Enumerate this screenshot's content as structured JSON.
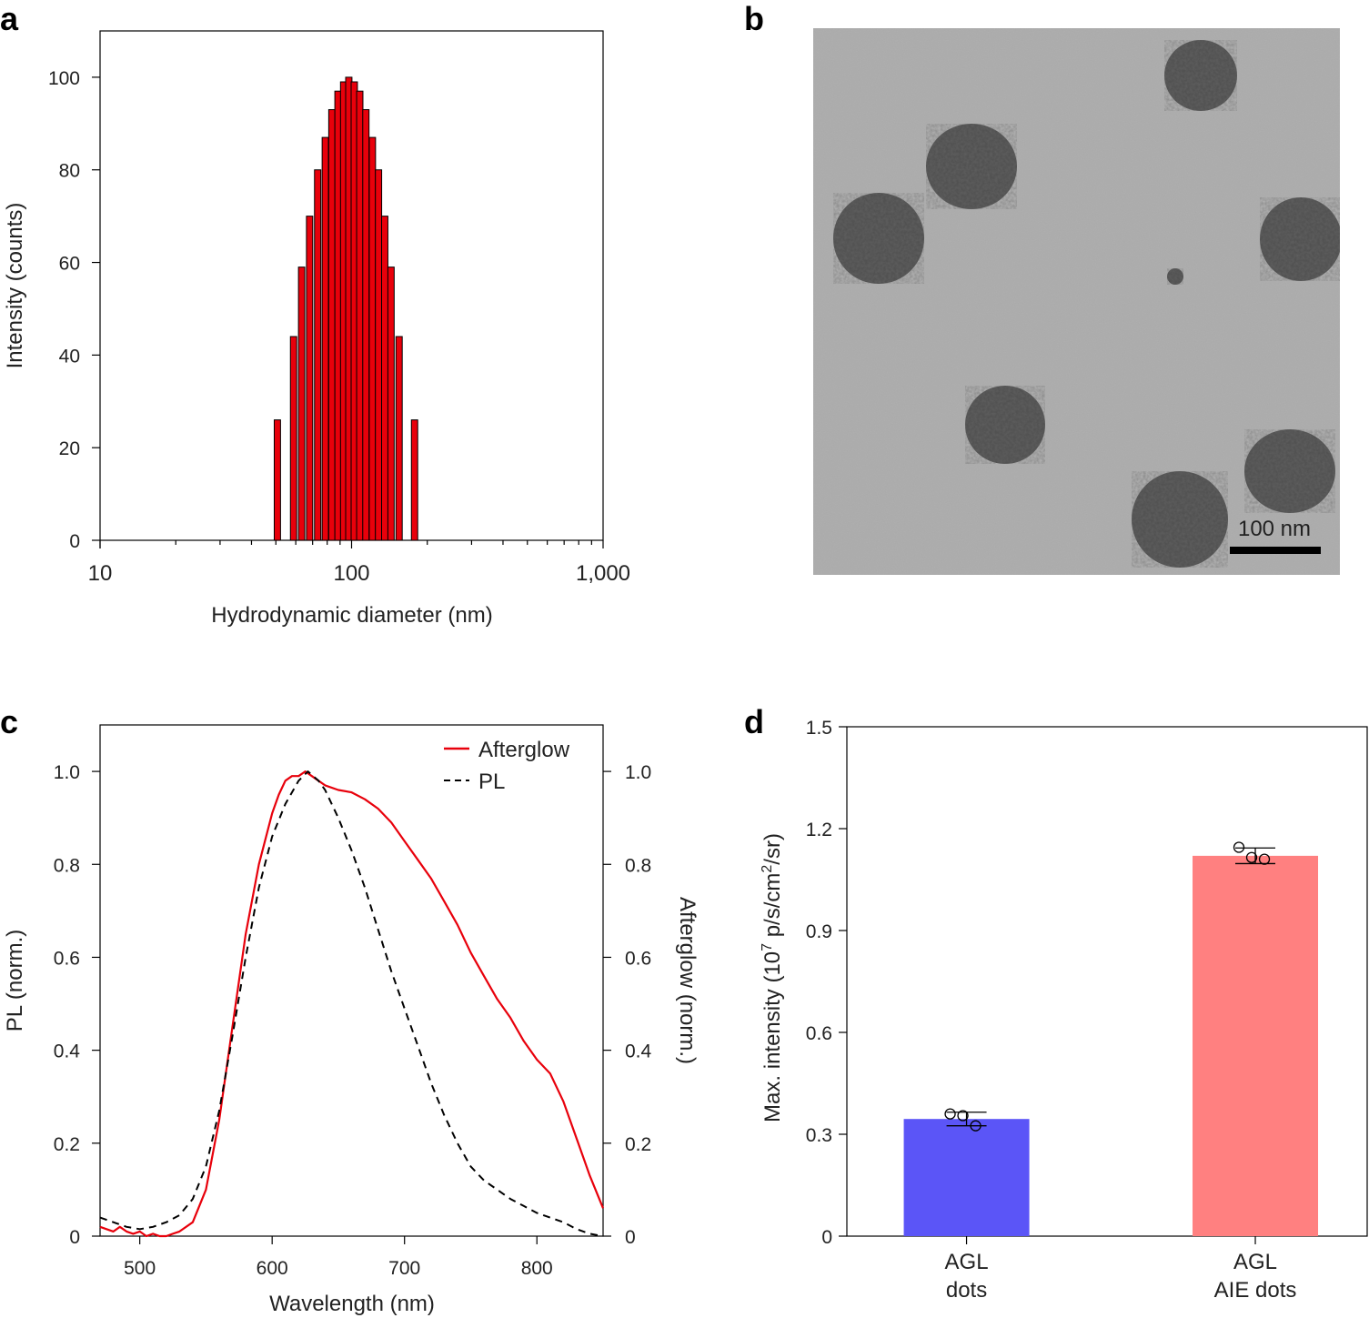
{
  "panels": {
    "a": "a",
    "b": "b",
    "c": "c",
    "d": "d"
  },
  "chart_data": [
    {
      "panel": "a",
      "type": "bar",
      "xscale": "log",
      "xlabel": "Hydrodynamic diameter (nm)",
      "ylabel": "Intensity (counts)",
      "xlim": [
        10,
        1000
      ],
      "ylim": [
        0,
        110
      ],
      "xticks": [
        10,
        100,
        1000
      ],
      "xtick_labels": [
        "10",
        "100",
        "1,000"
      ],
      "yticks": [
        0,
        20,
        40,
        60,
        80,
        100
      ],
      "ytick_labels": [
        "0",
        "20",
        "40",
        "60",
        "80",
        "100"
      ],
      "bar_color": "#e8000b",
      "bars": [
        {
          "x": 50.7,
          "y": 26
        },
        {
          "x": 58.8,
          "y": 44
        },
        {
          "x": 63.3,
          "y": 59
        },
        {
          "x": 68.1,
          "y": 70
        },
        {
          "x": 73.3,
          "y": 80
        },
        {
          "x": 78.6,
          "y": 87
        },
        {
          "x": 83.5,
          "y": 93
        },
        {
          "x": 88.3,
          "y": 97
        },
        {
          "x": 93.0,
          "y": 99
        },
        {
          "x": 97.5,
          "y": 100
        },
        {
          "x": 102.5,
          "y": 99
        },
        {
          "x": 107.8,
          "y": 97
        },
        {
          "x": 114.0,
          "y": 93
        },
        {
          "x": 121.0,
          "y": 87
        },
        {
          "x": 128.0,
          "y": 80
        },
        {
          "x": 135.5,
          "y": 70
        },
        {
          "x": 143.5,
          "y": 59
        },
        {
          "x": 154.5,
          "y": 44
        },
        {
          "x": 178.0,
          "y": 26
        }
      ]
    },
    {
      "panel": "b",
      "type": "image",
      "scale_bar_label": "100 nm"
    },
    {
      "panel": "c",
      "type": "line",
      "xlabel": "Wavelength (nm)",
      "ylabel_left": "PL (norm.)",
      "ylabel_right": "Afterglow (norm.)",
      "xlim": [
        470,
        850
      ],
      "ylim": [
        0,
        1.1
      ],
      "xticks": [
        500,
        600,
        700,
        800
      ],
      "yticks": [
        0,
        0.2,
        0.4,
        0.6,
        0.8,
        1.0
      ],
      "ytick_labels": [
        "0",
        "0.2",
        "0.4",
        "0.6",
        "0.8",
        "1.0"
      ],
      "legend_position": "top-right",
      "series": [
        {
          "name": "Afterglow",
          "color": "#e8000b",
          "style": "solid",
          "points": [
            [
              470,
              0.02
            ],
            [
              480,
              0.01
            ],
            [
              485,
              0.02
            ],
            [
              490,
              0.01
            ],
            [
              495,
              0.005
            ],
            [
              500,
              0.01
            ],
            [
              505,
              0.0
            ],
            [
              510,
              0.005
            ],
            [
              515,
              0.0
            ],
            [
              520,
              0.0
            ],
            [
              525,
              0.005
            ],
            [
              530,
              0.01
            ],
            [
              540,
              0.03
            ],
            [
              550,
              0.1
            ],
            [
              560,
              0.25
            ],
            [
              570,
              0.45
            ],
            [
              580,
              0.65
            ],
            [
              590,
              0.8
            ],
            [
              600,
              0.91
            ],
            [
              605,
              0.95
            ],
            [
              610,
              0.98
            ],
            [
              615,
              0.99
            ],
            [
              620,
              0.99
            ],
            [
              625,
              1.0
            ],
            [
              630,
              0.99
            ],
            [
              635,
              0.98
            ],
            [
              640,
              0.97
            ],
            [
              650,
              0.96
            ],
            [
              660,
              0.955
            ],
            [
              670,
              0.94
            ],
            [
              680,
              0.92
            ],
            [
              690,
              0.89
            ],
            [
              700,
              0.85
            ],
            [
              710,
              0.81
            ],
            [
              720,
              0.77
            ],
            [
              730,
              0.72
            ],
            [
              740,
              0.67
            ],
            [
              750,
              0.61
            ],
            [
              760,
              0.56
            ],
            [
              770,
              0.51
            ],
            [
              780,
              0.47
            ],
            [
              790,
              0.42
            ],
            [
              800,
              0.38
            ],
            [
              810,
              0.35
            ],
            [
              820,
              0.29
            ],
            [
              830,
              0.21
            ],
            [
              840,
              0.13
            ],
            [
              850,
              0.06
            ]
          ]
        },
        {
          "name": "PL",
          "color": "#000000",
          "style": "dashed",
          "points": [
            [
              470,
              0.04
            ],
            [
              480,
              0.03
            ],
            [
              490,
              0.02
            ],
            [
              500,
              0.015
            ],
            [
              510,
              0.02
            ],
            [
              520,
              0.03
            ],
            [
              530,
              0.045
            ],
            [
              540,
              0.08
            ],
            [
              550,
              0.15
            ],
            [
              560,
              0.27
            ],
            [
              570,
              0.43
            ],
            [
              580,
              0.6
            ],
            [
              590,
              0.75
            ],
            [
              600,
              0.86
            ],
            [
              610,
              0.93
            ],
            [
              620,
              0.98
            ],
            [
              627,
              1.0
            ],
            [
              635,
              0.98
            ],
            [
              640,
              0.96
            ],
            [
              650,
              0.9
            ],
            [
              660,
              0.83
            ],
            [
              670,
              0.75
            ],
            [
              680,
              0.66
            ],
            [
              690,
              0.57
            ],
            [
              700,
              0.49
            ],
            [
              710,
              0.41
            ],
            [
              720,
              0.33
            ],
            [
              730,
              0.26
            ],
            [
              740,
              0.2
            ],
            [
              750,
              0.15
            ],
            [
              760,
              0.12
            ],
            [
              770,
              0.1
            ],
            [
              780,
              0.08
            ],
            [
              790,
              0.065
            ],
            [
              800,
              0.05
            ],
            [
              810,
              0.04
            ],
            [
              820,
              0.03
            ],
            [
              830,
              0.015
            ],
            [
              840,
              0.005
            ],
            [
              850,
              0.0
            ]
          ]
        }
      ]
    },
    {
      "panel": "d",
      "type": "bar",
      "ylabel": "Max. intensity (10^7 p/s/cm^2/sr)",
      "ylim": [
        0,
        1.5
      ],
      "yticks": [
        0,
        0.3,
        0.6,
        0.9,
        1.2,
        1.5
      ],
      "ytick_labels": [
        "0",
        "0.3",
        "0.6",
        "0.9",
        "1.2",
        "1.5"
      ],
      "categories": [
        [
          "AGL",
          "dots"
        ],
        [
          "AGL",
          "AIE dots"
        ]
      ],
      "values": [
        0.345,
        1.12
      ],
      "errors": [
        0.02,
        0.023
      ],
      "colors": [
        "#5b55f7",
        "#ff8080"
      ],
      "replicates": [
        [
          0.36,
          0.355,
          0.325
        ],
        [
          1.145,
          1.115,
          1.11
        ]
      ]
    }
  ]
}
